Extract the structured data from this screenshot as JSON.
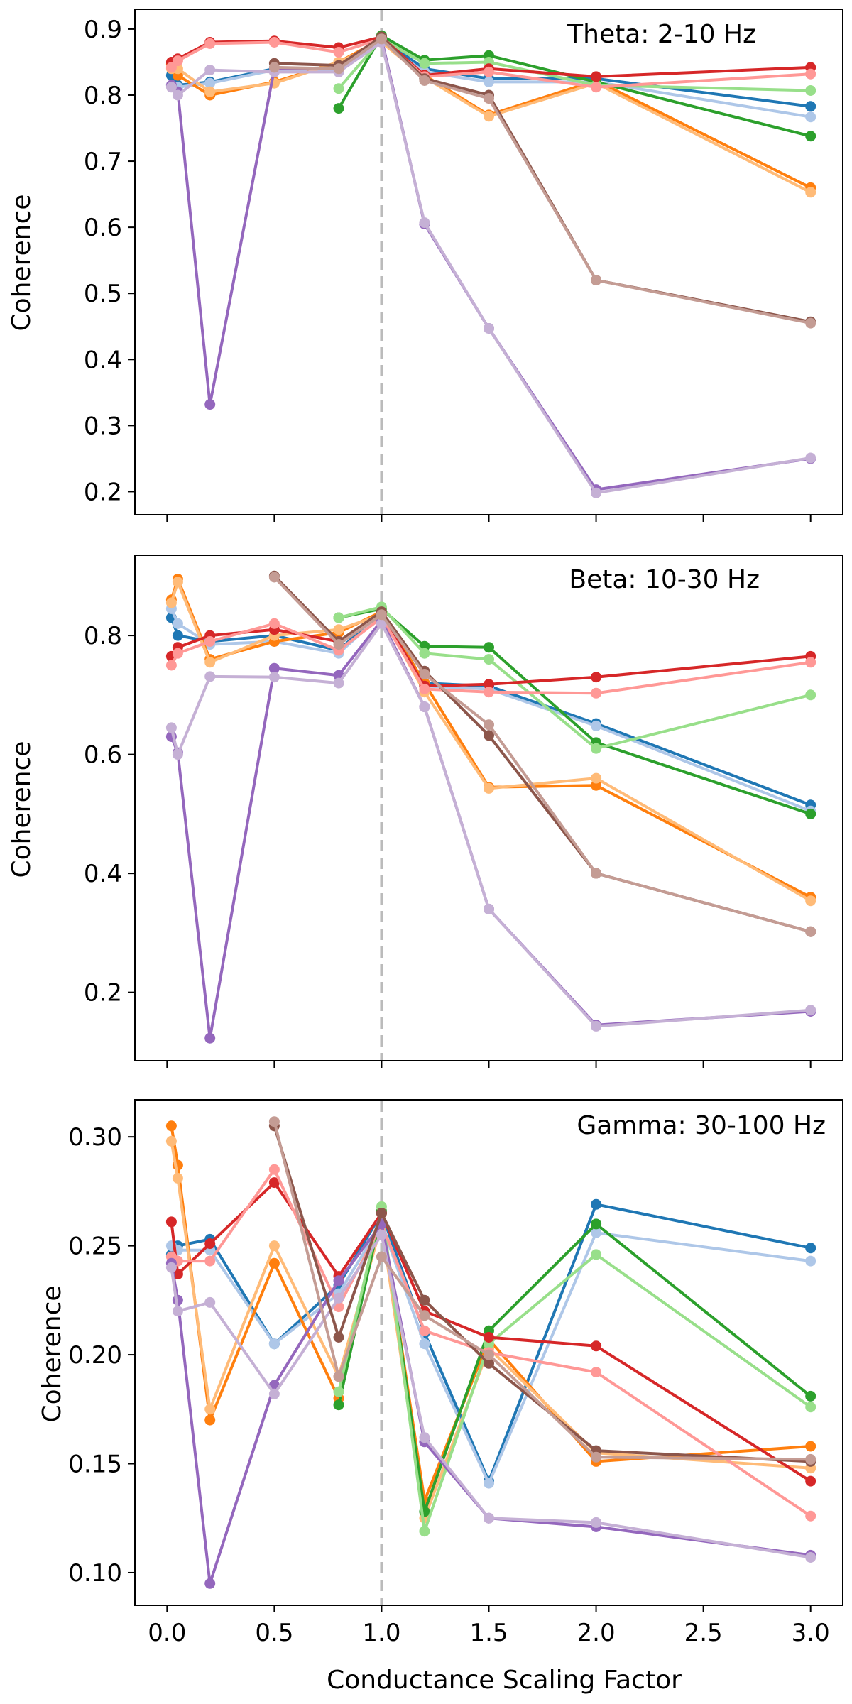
{
  "figure": {
    "xlabel": "Conductance Scaling Factor"
  },
  "colors": {
    "blue": "#1f77b4",
    "lightblue": "#aec7e8",
    "orange": "#ff7f0e",
    "lightorange": "#ffbb78",
    "green": "#2ca02c",
    "lightgreen": "#98df8a",
    "red": "#d62728",
    "pink": "#ff9896",
    "purple": "#9467bd",
    "lavender": "#c5b0d5",
    "brown": "#8c564b",
    "tan": "#c49c94",
    "refline": "#bbbbbb"
  },
  "chart_data": [
    {
      "type": "line",
      "title": "Theta: 2-10 Hz",
      "ylabel": "Coherence",
      "xlabel": "",
      "xlim": [
        -0.15,
        3.15
      ],
      "ylim": [
        0.165,
        0.93
      ],
      "xticks": [
        0.0,
        0.5,
        1.0,
        1.5,
        2.0,
        2.5,
        3.0
      ],
      "xtick_labels": [],
      "yticks": [
        0.2,
        0.3,
        0.4,
        0.5,
        0.6,
        0.7,
        0.8,
        0.9
      ],
      "ytick_labels": [
        "0.2",
        "0.3",
        "0.4",
        "0.5",
        "0.6",
        "0.7",
        "0.8",
        "0.9"
      ],
      "reference_line_x": 1.0,
      "series": [
        {
          "color": "blue",
          "x": [
            0.02,
            0.05,
            0.2,
            0.5,
            0.8,
            1.0,
            1.2,
            1.5,
            2.0,
            3.0
          ],
          "y": [
            0.83,
            0.815,
            0.82,
            0.84,
            0.84,
            0.885,
            0.84,
            0.825,
            0.825,
            0.783
          ]
        },
        {
          "color": "lightblue",
          "x": [
            0.02,
            0.05,
            0.2,
            0.5,
            0.8,
            1.0,
            1.2,
            1.5,
            2.0,
            3.0
          ],
          "y": [
            0.815,
            0.812,
            0.818,
            0.838,
            0.838,
            0.88,
            0.835,
            0.82,
            0.82,
            0.767
          ]
        },
        {
          "color": "orange",
          "x": [
            0.02,
            0.05,
            0.2,
            0.5,
            0.8,
            1.0,
            1.2,
            1.5,
            2.0,
            3.0
          ],
          "y": [
            0.847,
            0.83,
            0.8,
            0.82,
            0.85,
            0.885,
            0.83,
            0.77,
            0.822,
            0.66
          ]
        },
        {
          "color": "lightorange",
          "x": [
            0.02,
            0.05,
            0.2,
            0.5,
            0.8,
            1.0,
            1.2,
            1.5,
            2.0,
            3.0
          ],
          "y": [
            0.84,
            0.84,
            0.805,
            0.818,
            0.85,
            0.88,
            0.827,
            0.768,
            0.818,
            0.653
          ]
        },
        {
          "color": "green",
          "x": [
            0.8,
            1.0,
            1.2,
            1.5,
            2.0,
            3.0
          ],
          "y": [
            0.78,
            0.89,
            0.853,
            0.86,
            0.82,
            0.738
          ]
        },
        {
          "color": "lightgreen",
          "x": [
            0.8,
            1.0,
            1.2,
            1.5,
            2.0,
            3.0
          ],
          "y": [
            0.81,
            0.885,
            0.848,
            0.85,
            0.815,
            0.807
          ]
        },
        {
          "color": "red",
          "x": [
            0.02,
            0.05,
            0.2,
            0.5,
            0.8,
            1.0,
            1.2,
            1.5,
            2.0,
            3.0
          ],
          "y": [
            0.85,
            0.855,
            0.88,
            0.882,
            0.872,
            0.888,
            0.83,
            0.84,
            0.828,
            0.842
          ]
        },
        {
          "color": "pink",
          "x": [
            0.02,
            0.05,
            0.2,
            0.5,
            0.8,
            1.0,
            1.2,
            1.5,
            2.0,
            3.0
          ],
          "y": [
            0.842,
            0.852,
            0.878,
            0.88,
            0.865,
            0.885,
            0.828,
            0.835,
            0.812,
            0.832
          ]
        },
        {
          "color": "purple",
          "x": [
            0.02,
            0.05,
            0.2,
            0.5,
            0.8,
            1.0,
            1.2,
            1.5,
            2.0,
            3.0
          ],
          "y": [
            0.815,
            0.805,
            0.332,
            0.84,
            0.84,
            0.885,
            0.605,
            0.447,
            0.203,
            0.25
          ]
        },
        {
          "color": "lavender",
          "x": [
            0.02,
            0.05,
            0.2,
            0.5,
            0.8,
            1.0,
            1.2,
            1.5,
            2.0,
            3.0
          ],
          "y": [
            0.812,
            0.8,
            0.838,
            0.835,
            0.835,
            0.88,
            0.607,
            0.447,
            0.198,
            0.251
          ]
        },
        {
          "color": "brown",
          "x": [
            0.5,
            0.8,
            1.0,
            1.2,
            1.5,
            2.0,
            3.0
          ],
          "y": [
            0.848,
            0.845,
            0.888,
            0.825,
            0.8,
            0.52,
            0.457
          ]
        },
        {
          "color": "tan",
          "x": [
            0.5,
            0.8,
            1.0,
            1.2,
            1.5,
            2.0,
            3.0
          ],
          "y": [
            0.842,
            0.84,
            0.885,
            0.822,
            0.795,
            0.52,
            0.455
          ]
        }
      ]
    },
    {
      "type": "line",
      "title": "Beta: 10-30 Hz",
      "ylabel": "Coherence",
      "xlabel": "",
      "xlim": [
        -0.15,
        3.15
      ],
      "ylim": [
        0.085,
        0.935
      ],
      "xticks": [
        0.0,
        0.5,
        1.0,
        1.5,
        2.0,
        2.5,
        3.0
      ],
      "xtick_labels": [],
      "yticks": [
        0.2,
        0.4,
        0.6,
        0.8
      ],
      "ytick_labels": [
        "0.2",
        "0.4",
        "0.6",
        "0.8"
      ],
      "reference_line_x": 1.0,
      "series": [
        {
          "color": "blue",
          "x": [
            0.02,
            0.05,
            0.2,
            0.5,
            0.8,
            1.0,
            1.2,
            1.5,
            2.0,
            3.0
          ],
          "y": [
            0.83,
            0.8,
            0.79,
            0.8,
            0.775,
            0.84,
            0.72,
            0.715,
            0.652,
            0.515
          ]
        },
        {
          "color": "lightblue",
          "x": [
            0.02,
            0.05,
            0.2,
            0.5,
            0.8,
            1.0,
            1.2,
            1.5,
            2.0,
            3.0
          ],
          "y": [
            0.845,
            0.82,
            0.785,
            0.79,
            0.77,
            0.835,
            0.715,
            0.71,
            0.648,
            0.505
          ]
        },
        {
          "color": "orange",
          "x": [
            0.02,
            0.05,
            0.2,
            0.5,
            0.8,
            1.0,
            1.2,
            1.5,
            2.0,
            3.0
          ],
          "y": [
            0.86,
            0.895,
            0.76,
            0.79,
            0.805,
            0.84,
            0.72,
            0.545,
            0.548,
            0.36
          ]
        },
        {
          "color": "lightorange",
          "x": [
            0.02,
            0.05,
            0.2,
            0.5,
            0.8,
            1.0,
            1.2,
            1.5,
            2.0,
            3.0
          ],
          "y": [
            0.855,
            0.89,
            0.755,
            0.8,
            0.81,
            0.835,
            0.705,
            0.543,
            0.56,
            0.354
          ]
        },
        {
          "color": "green",
          "x": [
            0.8,
            1.0,
            1.2,
            1.5,
            2.0,
            3.0
          ],
          "y": [
            0.83,
            0.845,
            0.782,
            0.78,
            0.62,
            0.5
          ]
        },
        {
          "color": "lightgreen",
          "x": [
            0.8,
            1.0,
            1.2,
            1.5,
            2.0,
            3.0
          ],
          "y": [
            0.83,
            0.848,
            0.77,
            0.76,
            0.61,
            0.7
          ]
        },
        {
          "color": "red",
          "x": [
            0.02,
            0.05,
            0.2,
            0.5,
            0.8,
            1.0,
            1.2,
            1.5,
            2.0,
            3.0
          ],
          "y": [
            0.765,
            0.78,
            0.8,
            0.81,
            0.79,
            0.835,
            0.715,
            0.718,
            0.73,
            0.765
          ]
        },
        {
          "color": "pink",
          "x": [
            0.02,
            0.05,
            0.2,
            0.5,
            0.8,
            1.0,
            1.2,
            1.5,
            2.0,
            3.0
          ],
          "y": [
            0.75,
            0.77,
            0.79,
            0.82,
            0.775,
            0.83,
            0.71,
            0.705,
            0.703,
            0.755
          ]
        },
        {
          "color": "purple",
          "x": [
            0.02,
            0.05,
            0.2,
            0.5,
            0.8,
            1.0,
            1.2,
            1.5,
            2.0,
            3.0
          ],
          "y": [
            0.63,
            0.603,
            0.123,
            0.745,
            0.733,
            0.825,
            0.68,
            0.34,
            0.145,
            0.168
          ]
        },
        {
          "color": "lavender",
          "x": [
            0.02,
            0.05,
            0.2,
            0.5,
            0.8,
            1.0,
            1.2,
            1.5,
            2.0,
            3.0
          ],
          "y": [
            0.645,
            0.6,
            0.731,
            0.73,
            0.72,
            0.82,
            0.68,
            0.34,
            0.143,
            0.17
          ]
        },
        {
          "color": "brown",
          "x": [
            0.5,
            0.8,
            1.0,
            1.2,
            1.5,
            2.0,
            3.0
          ],
          "y": [
            0.9,
            0.79,
            0.84,
            0.74,
            0.632,
            0.4,
            0.302
          ]
        },
        {
          "color": "tan",
          "x": [
            0.5,
            0.8,
            1.0,
            1.2,
            1.5,
            2.0,
            3.0
          ],
          "y": [
            0.898,
            0.785,
            0.835,
            0.735,
            0.65,
            0.4,
            0.302
          ]
        }
      ]
    },
    {
      "type": "line",
      "title": "Gamma: 30-100 Hz",
      "ylabel": "Coherence",
      "xlabel": "Conductance Scaling Factor",
      "xlim": [
        -0.15,
        3.15
      ],
      "ylim": [
        0.085,
        0.317
      ],
      "xticks": [
        0.0,
        0.5,
        1.0,
        1.5,
        2.0,
        2.5,
        3.0
      ],
      "xtick_labels": [
        "0.0",
        "0.5",
        "1.0",
        "1.5",
        "2.0",
        "2.5",
        "3.0"
      ],
      "yticks": [
        0.1,
        0.15,
        0.2,
        0.25,
        0.3
      ],
      "ytick_labels": [
        "0.10",
        "0.15",
        "0.20",
        "0.25",
        "0.30"
      ],
      "reference_line_x": 1.0,
      "series": [
        {
          "color": "blue",
          "x": [
            0.02,
            0.05,
            0.2,
            0.5,
            0.8,
            1.0,
            1.2,
            1.5,
            2.0,
            3.0
          ],
          "y": [
            0.246,
            0.25,
            0.253,
            0.205,
            0.232,
            0.265,
            0.21,
            0.142,
            0.269,
            0.249
          ]
        },
        {
          "color": "lightblue",
          "x": [
            0.02,
            0.05,
            0.2,
            0.5,
            0.8,
            1.0,
            1.2,
            1.5,
            2.0,
            3.0
          ],
          "y": [
            0.25,
            0.248,
            0.248,
            0.205,
            0.228,
            0.26,
            0.205,
            0.141,
            0.256,
            0.243
          ]
        },
        {
          "color": "orange",
          "x": [
            0.02,
            0.05,
            0.2,
            0.5,
            0.8,
            1.0,
            1.2,
            1.5,
            2.0,
            3.0
          ],
          "y": [
            0.305,
            0.287,
            0.17,
            0.242,
            0.18,
            0.265,
            0.133,
            0.207,
            0.151,
            0.158
          ]
        },
        {
          "color": "lightorange",
          "x": [
            0.02,
            0.05,
            0.2,
            0.5,
            0.8,
            1.0,
            1.2,
            1.5,
            2.0,
            3.0
          ],
          "y": [
            0.298,
            0.281,
            0.175,
            0.25,
            0.19,
            0.26,
            0.125,
            0.203,
            0.155,
            0.148
          ]
        },
        {
          "color": "green",
          "x": [
            0.8,
            1.0,
            1.2,
            1.5,
            2.0,
            3.0
          ],
          "y": [
            0.177,
            0.266,
            0.128,
            0.211,
            0.26,
            0.181
          ]
        },
        {
          "color": "lightgreen",
          "x": [
            0.8,
            1.0,
            1.2,
            1.5,
            2.0,
            3.0
          ],
          "y": [
            0.183,
            0.268,
            0.119,
            0.205,
            0.246,
            0.176
          ]
        },
        {
          "color": "red",
          "x": [
            0.02,
            0.05,
            0.2,
            0.5,
            0.8,
            1.0,
            1.2,
            1.5,
            2.0,
            3.0
          ],
          "y": [
            0.261,
            0.237,
            0.251,
            0.279,
            0.236,
            0.265,
            0.22,
            0.208,
            0.204,
            0.142
          ]
        },
        {
          "color": "pink",
          "x": [
            0.02,
            0.05,
            0.2,
            0.5,
            0.8,
            1.0,
            1.2,
            1.5,
            2.0,
            3.0
          ],
          "y": [
            0.245,
            0.243,
            0.243,
            0.285,
            0.222,
            0.26,
            0.211,
            0.201,
            0.192,
            0.126
          ]
        },
        {
          "color": "purple",
          "x": [
            0.02,
            0.05,
            0.2,
            0.5,
            0.8,
            1.0,
            1.2,
            1.5,
            2.0,
            3.0
          ],
          "y": [
            0.242,
            0.225,
            0.095,
            0.186,
            0.234,
            0.26,
            0.16,
            0.125,
            0.121,
            0.108
          ]
        },
        {
          "color": "lavender",
          "x": [
            0.02,
            0.05,
            0.2,
            0.5,
            0.8,
            1.0,
            1.2,
            1.5,
            2.0,
            3.0
          ],
          "y": [
            0.24,
            0.22,
            0.224,
            0.182,
            0.226,
            0.255,
            0.162,
            0.125,
            0.123,
            0.107
          ]
        },
        {
          "color": "brown",
          "x": [
            0.5,
            0.8,
            1.0,
            1.2,
            1.5,
            2.0,
            3.0
          ],
          "y": [
            0.305,
            0.208,
            0.265,
            0.225,
            0.196,
            0.156,
            0.151
          ]
        },
        {
          "color": "tan",
          "x": [
            0.5,
            0.8,
            1.0,
            1.2,
            1.5,
            2.0,
            3.0
          ],
          "y": [
            0.307,
            0.19,
            0.245,
            0.218,
            0.2,
            0.153,
            0.152
          ]
        }
      ]
    }
  ]
}
